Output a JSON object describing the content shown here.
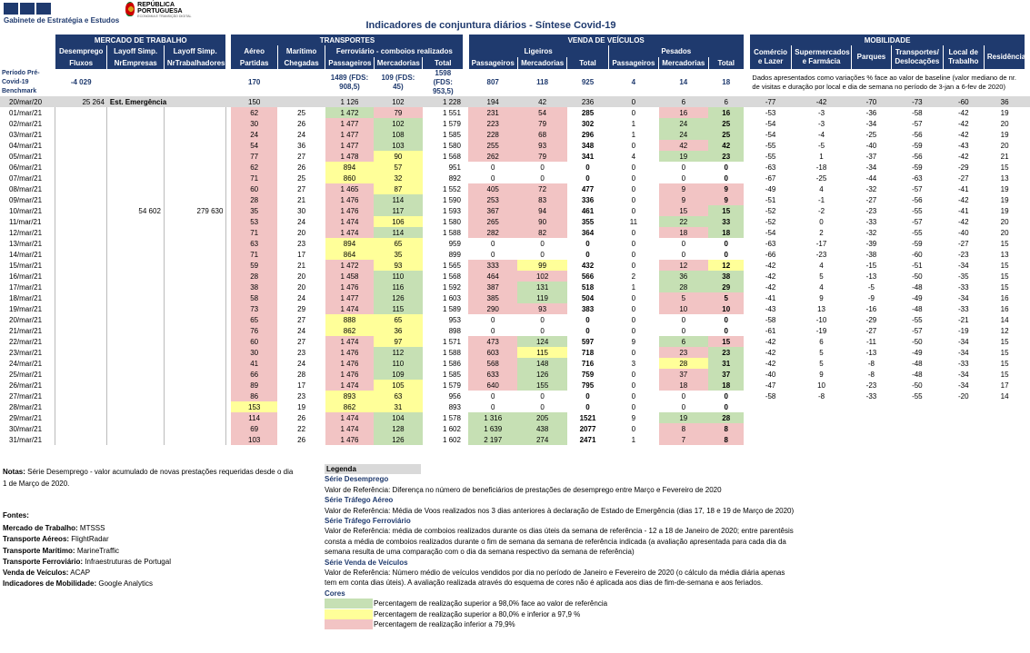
{
  "header": {
    "org_name": "Gabinete de Estratégia e Estudos",
    "rp_name": "REPÚBLICA PORTUGUESA",
    "rp_sub": "ECONOMIA E TRANSIÇÃO DIGITAL",
    "title": "Indicadores de conjuntura diários - Síntese Covid-19"
  },
  "sections": {
    "mercado": "MERCADO DE TRABALHO",
    "transportes": "TRANSPORTES",
    "veiculos": "VENDA DE VEÍCULOS",
    "mobilidade": "MOBILIDADE"
  },
  "subheaders": {
    "desemprego": "Desemprego",
    "layoff1": "Layoff Simp.",
    "layoff2": "Layoff Simp.",
    "aereo": "Aéreo",
    "maritimo": "Marítimo",
    "ferroviario": "Ferroviário - comboios realizados",
    "ligeiros": "Ligeiros",
    "pesados": "Pesados",
    "comercio": "Comércio e Lazer",
    "supermercados": "Supermercados e Farmácia",
    "parques": "Parques",
    "transportes_desl": "Transportes/ Deslocações",
    "local_trabalho": "Local de Trabalho",
    "residencia": "Residência"
  },
  "columns": {
    "fluxos": "Fluxos",
    "nrempresas": "NrEmpresas",
    "nrtrabalhadores": "NrTrabalhadores",
    "partidas": "Partidas",
    "chegadas": "Chegadas",
    "passageiros": "Passageiros",
    "mercadorias": "Mercadorias",
    "total": "Total"
  },
  "baseline": {
    "label": "Período Pré-Covid-19 Benchmark",
    "desemprego": "-4 029",
    "aereo": "170",
    "ferro_pass": "1489 (FDS: 908,5)",
    "ferro_merc": "109 (FDS: 45)",
    "ferro_total": "1598 (FDS: 953,5)",
    "lig_pass": "807",
    "lig_merc": "118",
    "lig_total": "925",
    "pes_pass": "4",
    "pes_merc": "14",
    "pes_total": "18",
    "note": "Dados apresentados como variações % face ao valor de baseline (valor mediano de nr. de visitas e duração por local e dia de semana no período de 3-jan a 6-fev de 2020)"
  },
  "emergency": {
    "date": "20/mar/20",
    "desemprego": "25 264",
    "label": "Est. Emergência",
    "partidas": "150",
    "fer_pass": "1 126",
    "fer_merc": "102",
    "fer_total": "1 228",
    "lig_pass": "194",
    "lig_merc": "42",
    "lig_total": "236",
    "pes_pass": "0",
    "pes_merc": "6",
    "pes_total": "6",
    "mob": [
      "-77",
      "-42",
      "-70",
      "-73",
      "-60",
      "36"
    ]
  },
  "rows": [
    [
      "01/mar/21",
      "",
      "",
      "",
      "62",
      "25",
      "1 472",
      "79",
      "1 551",
      "231",
      "54",
      "285",
      "0",
      "16",
      "16",
      "-53",
      "-3",
      "-36",
      "-58",
      "-42",
      "19"
    ],
    [
      "02/mar/21",
      "",
      "",
      "",
      "30",
      "26",
      "1 477",
      "102",
      "1 579",
      "223",
      "79",
      "302",
      "1",
      "24",
      "25",
      "-54",
      "-3",
      "-34",
      "-57",
      "-42",
      "20"
    ],
    [
      "03/mar/21",
      "",
      "",
      "",
      "24",
      "24",
      "1 477",
      "108",
      "1 585",
      "228",
      "68",
      "296",
      "1",
      "24",
      "25",
      "-54",
      "-4",
      "-25",
      "-56",
      "-42",
      "19"
    ],
    [
      "04/mar/21",
      "",
      "",
      "",
      "54",
      "36",
      "1 477",
      "103",
      "1 580",
      "255",
      "93",
      "348",
      "0",
      "42",
      "42",
      "-55",
      "-5",
      "-40",
      "-59",
      "-43",
      "20"
    ],
    [
      "05/mar/21",
      "",
      "",
      "",
      "77",
      "27",
      "1 478",
      "90",
      "1 568",
      "262",
      "79",
      "341",
      "4",
      "19",
      "23",
      "-55",
      "1",
      "-37",
      "-56",
      "-42",
      "21"
    ],
    [
      "06/mar/21",
      "",
      "",
      "",
      "62",
      "26",
      "894",
      "57",
      "951",
      "0",
      "0",
      "0",
      "0",
      "0",
      "0",
      "-63",
      "-18",
      "-34",
      "-59",
      "-29",
      "15"
    ],
    [
      "07/mar/21",
      "",
      "",
      "",
      "71",
      "25",
      "860",
      "32",
      "892",
      "0",
      "0",
      "0",
      "0",
      "0",
      "0",
      "-67",
      "-25",
      "-44",
      "-63",
      "-27",
      "13"
    ],
    [
      "08/mar/21",
      "",
      "",
      "",
      "60",
      "27",
      "1 465",
      "87",
      "1 552",
      "405",
      "72",
      "477",
      "0",
      "9",
      "9",
      "-49",
      "4",
      "-32",
      "-57",
      "-41",
      "19"
    ],
    [
      "09/mar/21",
      "",
      "",
      "",
      "28",
      "21",
      "1 476",
      "114",
      "1 590",
      "253",
      "83",
      "336",
      "0",
      "9",
      "9",
      "-51",
      "-1",
      "-27",
      "-56",
      "-42",
      "19"
    ],
    [
      "10/mar/21",
      "",
      "54 602",
      "279 630",
      "35",
      "30",
      "1 476",
      "117",
      "1 593",
      "367",
      "94",
      "461",
      "0",
      "15",
      "15",
      "-52",
      "-2",
      "-23",
      "-55",
      "-41",
      "19"
    ],
    [
      "11/mar/21",
      "",
      "",
      "",
      "53",
      "24",
      "1 474",
      "106",
      "1 580",
      "265",
      "90",
      "355",
      "11",
      "22",
      "33",
      "-52",
      "0",
      "-33",
      "-57",
      "-42",
      "20"
    ],
    [
      "12/mar/21",
      "",
      "",
      "",
      "71",
      "20",
      "1 474",
      "114",
      "1 588",
      "282",
      "82",
      "364",
      "0",
      "18",
      "18",
      "-54",
      "2",
      "-32",
      "-55",
      "-40",
      "20"
    ],
    [
      "13/mar/21",
      "",
      "",
      "",
      "63",
      "23",
      "894",
      "65",
      "959",
      "0",
      "0",
      "0",
      "0",
      "0",
      "0",
      "-63",
      "-17",
      "-39",
      "-59",
      "-27",
      "15"
    ],
    [
      "14/mar/21",
      "",
      "",
      "",
      "71",
      "17",
      "864",
      "35",
      "899",
      "0",
      "0",
      "0",
      "0",
      "0",
      "0",
      "-66",
      "-23",
      "-38",
      "-60",
      "-23",
      "13"
    ],
    [
      "15/mar/21",
      "",
      "",
      "",
      "59",
      "21",
      "1 472",
      "93",
      "1 565",
      "333",
      "99",
      "432",
      "0",
      "12",
      "12",
      "-42",
      "4",
      "-15",
      "-51",
      "-34",
      "15"
    ],
    [
      "16/mar/21",
      "",
      "",
      "",
      "28",
      "20",
      "1 458",
      "110",
      "1 568",
      "464",
      "102",
      "566",
      "2",
      "36",
      "38",
      "-42",
      "5",
      "-13",
      "-50",
      "-35",
      "15"
    ],
    [
      "17/mar/21",
      "",
      "",
      "",
      "38",
      "20",
      "1 476",
      "116",
      "1 592",
      "387",
      "131",
      "518",
      "1",
      "28",
      "29",
      "-42",
      "4",
      "-5",
      "-48",
      "-33",
      "15"
    ],
    [
      "18/mar/21",
      "",
      "",
      "",
      "58",
      "24",
      "1 477",
      "126",
      "1 603",
      "385",
      "119",
      "504",
      "0",
      "5",
      "5",
      "-41",
      "9",
      "-9",
      "-49",
      "-34",
      "16"
    ],
    [
      "19/mar/21",
      "",
      "",
      "",
      "73",
      "29",
      "1 474",
      "115",
      "1 589",
      "290",
      "93",
      "383",
      "0",
      "10",
      "10",
      "-43",
      "13",
      "-16",
      "-48",
      "-33",
      "16"
    ],
    [
      "20/mar/21",
      "",
      "",
      "",
      "65",
      "27",
      "888",
      "65",
      "953",
      "0",
      "0",
      "0",
      "0",
      "0",
      "0",
      "-58",
      "-10",
      "-29",
      "-55",
      "-21",
      "14"
    ],
    [
      "21/mar/21",
      "",
      "",
      "",
      "76",
      "24",
      "862",
      "36",
      "898",
      "0",
      "0",
      "0",
      "0",
      "0",
      "0",
      "-61",
      "-19",
      "-27",
      "-57",
      "-19",
      "12"
    ],
    [
      "22/mar/21",
      "",
      "",
      "",
      "60",
      "27",
      "1 474",
      "97",
      "1 571",
      "473",
      "124",
      "597",
      "9",
      "6",
      "15",
      "-42",
      "6",
      "-11",
      "-50",
      "-34",
      "15"
    ],
    [
      "23/mar/21",
      "",
      "",
      "",
      "30",
      "23",
      "1 476",
      "112",
      "1 588",
      "603",
      "115",
      "718",
      "0",
      "23",
      "23",
      "-42",
      "5",
      "-13",
      "-49",
      "-34",
      "15"
    ],
    [
      "24/mar/21",
      "",
      "",
      "",
      "41",
      "24",
      "1 476",
      "110",
      "1 586",
      "568",
      "148",
      "716",
      "3",
      "28",
      "31",
      "-42",
      "5",
      "-8",
      "-48",
      "-33",
      "15"
    ],
    [
      "25/mar/21",
      "",
      "",
      "",
      "66",
      "28",
      "1 476",
      "109",
      "1 585",
      "633",
      "126",
      "759",
      "0",
      "37",
      "37",
      "-40",
      "9",
      "-8",
      "-48",
      "-34",
      "15"
    ],
    [
      "26/mar/21",
      "",
      "",
      "",
      "89",
      "17",
      "1 474",
      "105",
      "1 579",
      "640",
      "155",
      "795",
      "0",
      "18",
      "18",
      "-47",
      "10",
      "-23",
      "-50",
      "-34",
      "17"
    ],
    [
      "27/mar/21",
      "",
      "",
      "",
      "86",
      "23",
      "893",
      "63",
      "956",
      "0",
      "0",
      "0",
      "0",
      "0",
      "0",
      "-58",
      "-8",
      "-33",
      "-55",
      "-20",
      "14"
    ],
    [
      "28/mar/21",
      "",
      "",
      "",
      "153",
      "19",
      "862",
      "31",
      "893",
      "0",
      "0",
      "0",
      "0",
      "0",
      "0",
      "",
      "",
      "",
      "",
      "",
      ""
    ],
    [
      "29/mar/21",
      "",
      "",
      "",
      "114",
      "26",
      "1 474",
      "104",
      "1 578",
      "1 316",
      "205",
      "1521",
      "9",
      "19",
      "28",
      "",
      "",
      "",
      "",
      "",
      ""
    ],
    [
      "30/mar/21",
      "",
      "",
      "",
      "69",
      "22",
      "1 474",
      "128",
      "1 602",
      "1 639",
      "438",
      "2077",
      "0",
      "8",
      "8",
      "",
      "",
      "",
      "",
      "",
      ""
    ],
    [
      "31/mar/21",
      "",
      "",
      "",
      "103",
      "26",
      "1 476",
      "126",
      "1 602",
      "2 197",
      "274",
      "2471",
      "1",
      "7",
      "8",
      "",
      "",
      "",
      "",
      "",
      ""
    ]
  ],
  "row_colors": [
    [
      "r",
      "",
      "",
      "",
      "",
      "g",
      "r",
      "",
      "r",
      "r",
      "",
      "",
      "r",
      "g",
      ""
    ],
    [
      "r",
      "",
      "",
      "",
      "",
      "r",
      "g",
      "",
      "r",
      "r",
      "",
      "",
      "g",
      "g",
      ""
    ],
    [
      "r",
      "",
      "",
      "",
      "",
      "r",
      "g",
      "",
      "r",
      "r",
      "",
      "",
      "g",
      "g",
      ""
    ],
    [
      "r",
      "",
      "",
      "",
      "",
      "r",
      "g",
      "",
      "r",
      "r",
      "",
      "",
      "r",
      "g",
      ""
    ],
    [
      "r",
      "",
      "",
      "",
      "",
      "r",
      "y",
      "",
      "r",
      "r",
      "",
      "",
      "g",
      "g",
      ""
    ],
    [
      "r",
      "",
      "",
      "",
      "",
      "y",
      "y",
      "",
      "",
      "",
      "",
      "",
      "",
      "",
      ""
    ],
    [
      "r",
      "",
      "",
      "",
      "",
      "y",
      "y",
      "",
      "",
      "",
      "",
      "",
      "",
      "",
      ""
    ],
    [
      "r",
      "",
      "",
      "",
      "",
      "r",
      "y",
      "",
      "r",
      "r",
      "",
      "",
      "r",
      "r",
      ""
    ],
    [
      "r",
      "",
      "",
      "",
      "",
      "r",
      "g",
      "",
      "r",
      "r",
      "",
      "",
      "r",
      "r",
      ""
    ],
    [
      "r",
      "",
      "",
      "",
      "",
      "r",
      "g",
      "",
      "r",
      "r",
      "",
      "",
      "r",
      "g",
      ""
    ],
    [
      "r",
      "",
      "",
      "",
      "",
      "r",
      "y",
      "",
      "r",
      "r",
      "",
      "",
      "g",
      "g",
      ""
    ],
    [
      "r",
      "",
      "",
      "",
      "",
      "r",
      "g",
      "",
      "r",
      "r",
      "",
      "",
      "r",
      "g",
      ""
    ],
    [
      "r",
      "",
      "",
      "",
      "",
      "y",
      "y",
      "",
      "",
      "",
      "",
      "",
      "",
      "",
      ""
    ],
    [
      "r",
      "",
      "",
      "",
      "",
      "y",
      "y",
      "",
      "",
      "",
      "",
      "",
      "",
      "",
      ""
    ],
    [
      "r",
      "",
      "",
      "",
      "",
      "r",
      "y",
      "",
      "r",
      "y",
      "",
      "",
      "r",
      "y",
      ""
    ],
    [
      "r",
      "",
      "",
      "",
      "",
      "r",
      "g",
      "",
      "r",
      "r",
      "",
      "",
      "g",
      "g",
      ""
    ],
    [
      "r",
      "",
      "",
      "",
      "",
      "r",
      "g",
      "",
      "r",
      "g",
      "",
      "",
      "g",
      "g",
      ""
    ],
    [
      "r",
      "",
      "",
      "",
      "",
      "r",
      "g",
      "",
      "r",
      "g",
      "",
      "",
      "r",
      "r",
      ""
    ],
    [
      "r",
      "",
      "",
      "",
      "",
      "r",
      "g",
      "",
      "r",
      "r",
      "",
      "",
      "r",
      "r",
      ""
    ],
    [
      "r",
      "",
      "",
      "",
      "",
      "y",
      "y",
      "",
      "",
      "",
      "",
      "",
      "",
      "",
      ""
    ],
    [
      "r",
      "",
      "",
      "",
      "",
      "y",
      "y",
      "",
      "",
      "",
      "",
      "",
      "",
      "",
      ""
    ],
    [
      "r",
      "",
      "",
      "",
      "",
      "r",
      "y",
      "",
      "r",
      "g",
      "",
      "",
      "g",
      "r",
      ""
    ],
    [
      "r",
      "",
      "",
      "",
      "",
      "r",
      "g",
      "",
      "r",
      "y",
      "",
      "",
      "r",
      "g",
      ""
    ],
    [
      "r",
      "",
      "",
      "",
      "",
      "r",
      "g",
      "",
      "r",
      "g",
      "",
      "",
      "y",
      "g",
      ""
    ],
    [
      "r",
      "",
      "",
      "",
      "",
      "r",
      "g",
      "",
      "r",
      "g",
      "",
      "",
      "r",
      "g",
      ""
    ],
    [
      "r",
      "",
      "",
      "",
      "",
      "r",
      "y",
      "",
      "r",
      "g",
      "",
      "",
      "r",
      "g",
      ""
    ],
    [
      "r",
      "",
      "",
      "",
      "",
      "y",
      "y",
      "",
      "",
      "",
      "",
      "",
      "",
      "",
      ""
    ],
    [
      "y",
      "",
      "",
      "",
      "",
      "y",
      "y",
      "",
      "",
      "",
      "",
      "",
      "",
      "",
      ""
    ],
    [
      "r",
      "",
      "",
      "",
      "",
      "r",
      "g",
      "",
      "g",
      "g",
      "",
      "",
      "g",
      "g",
      ""
    ],
    [
      "r",
      "",
      "",
      "",
      "",
      "r",
      "g",
      "",
      "g",
      "g",
      "",
      "",
      "r",
      "r",
      ""
    ],
    [
      "r",
      "",
      "",
      "",
      "",
      "r",
      "g",
      "",
      "g",
      "g",
      "",
      "",
      "r",
      "r",
      ""
    ]
  ],
  "notes": {
    "label": "Notas:",
    "text": "Série Desemprego - valor acumulado de novas prestações requeridas desde o dia 1 de Março de 2020."
  },
  "sources": {
    "title": "Fontes:",
    "items": [
      {
        "label": "Mercado de Trabalho:",
        "value": "MTSSS"
      },
      {
        "label": "Transporte Aéreos:",
        "value": "FlightRadar"
      },
      {
        "label": "Transporte Marítimo:",
        "value": "MarineTraffic"
      },
      {
        "label": "Transporte Ferroviário:",
        "value": "Infraestruturas de Portugal"
      },
      {
        "label": "Venda de Veículos:",
        "value": "ACAP"
      },
      {
        "label": "Indicadores de Mobilidade:",
        "value": "Google Analytics"
      }
    ]
  },
  "legend": {
    "title": "Legenda",
    "s1_title": "Série Desemprego",
    "s1_text": "Valor de Referência: Diferença no número de beneficiários de prestações de desemprego entre Março e Fevereiro de 2020",
    "s2_title": "Série Tráfego Aéreo",
    "s2_text": "Valor de Referência: Média de Voos realizados nos 3 dias anteriores à declaração de Estado de Emergência (dias 17, 18 e 19 de Março de 2020)",
    "s3_title": "Série Tráfego Ferroviário",
    "s3_text": "Valor de Referência: média de comboios realizados durante os dias úteis da semana de referência - 12 a 18 de Janeiro de 2020; entre parentêsis consta a média de comboios realizados durante o fim de semana da semana de referência indicada (a avaliação apresentada para cada dia da semana resulta de uma comparação com o dia da semana respectivo da semana de referência)",
    "s4_title": "Série Venda de Veículos",
    "s4_text": "Valor de Referência: Número médio de veículos vendidos por dia no período de Janeiro e Fevereiro de 2020 (o cálculo da média diária apenas tem em conta dias úteis). A avaliação realizada através do esquema de cores não é aplicada aos dias de fim-de-semana e aos feriados.",
    "colors_title": "Cores",
    "c1": "Percentagem de realização superior a 98,0% face ao valor de referência",
    "c2": "Percentagem de realização superior a 80,0% e inferior a 97,9 %",
    "c3": "Percentagem de realização inferior a 79,9%",
    "colors": {
      "green": "#c6e0b4",
      "yellow": "#ffff99",
      "red": "#f2c4c4",
      "header": "#1f3a6e"
    }
  }
}
